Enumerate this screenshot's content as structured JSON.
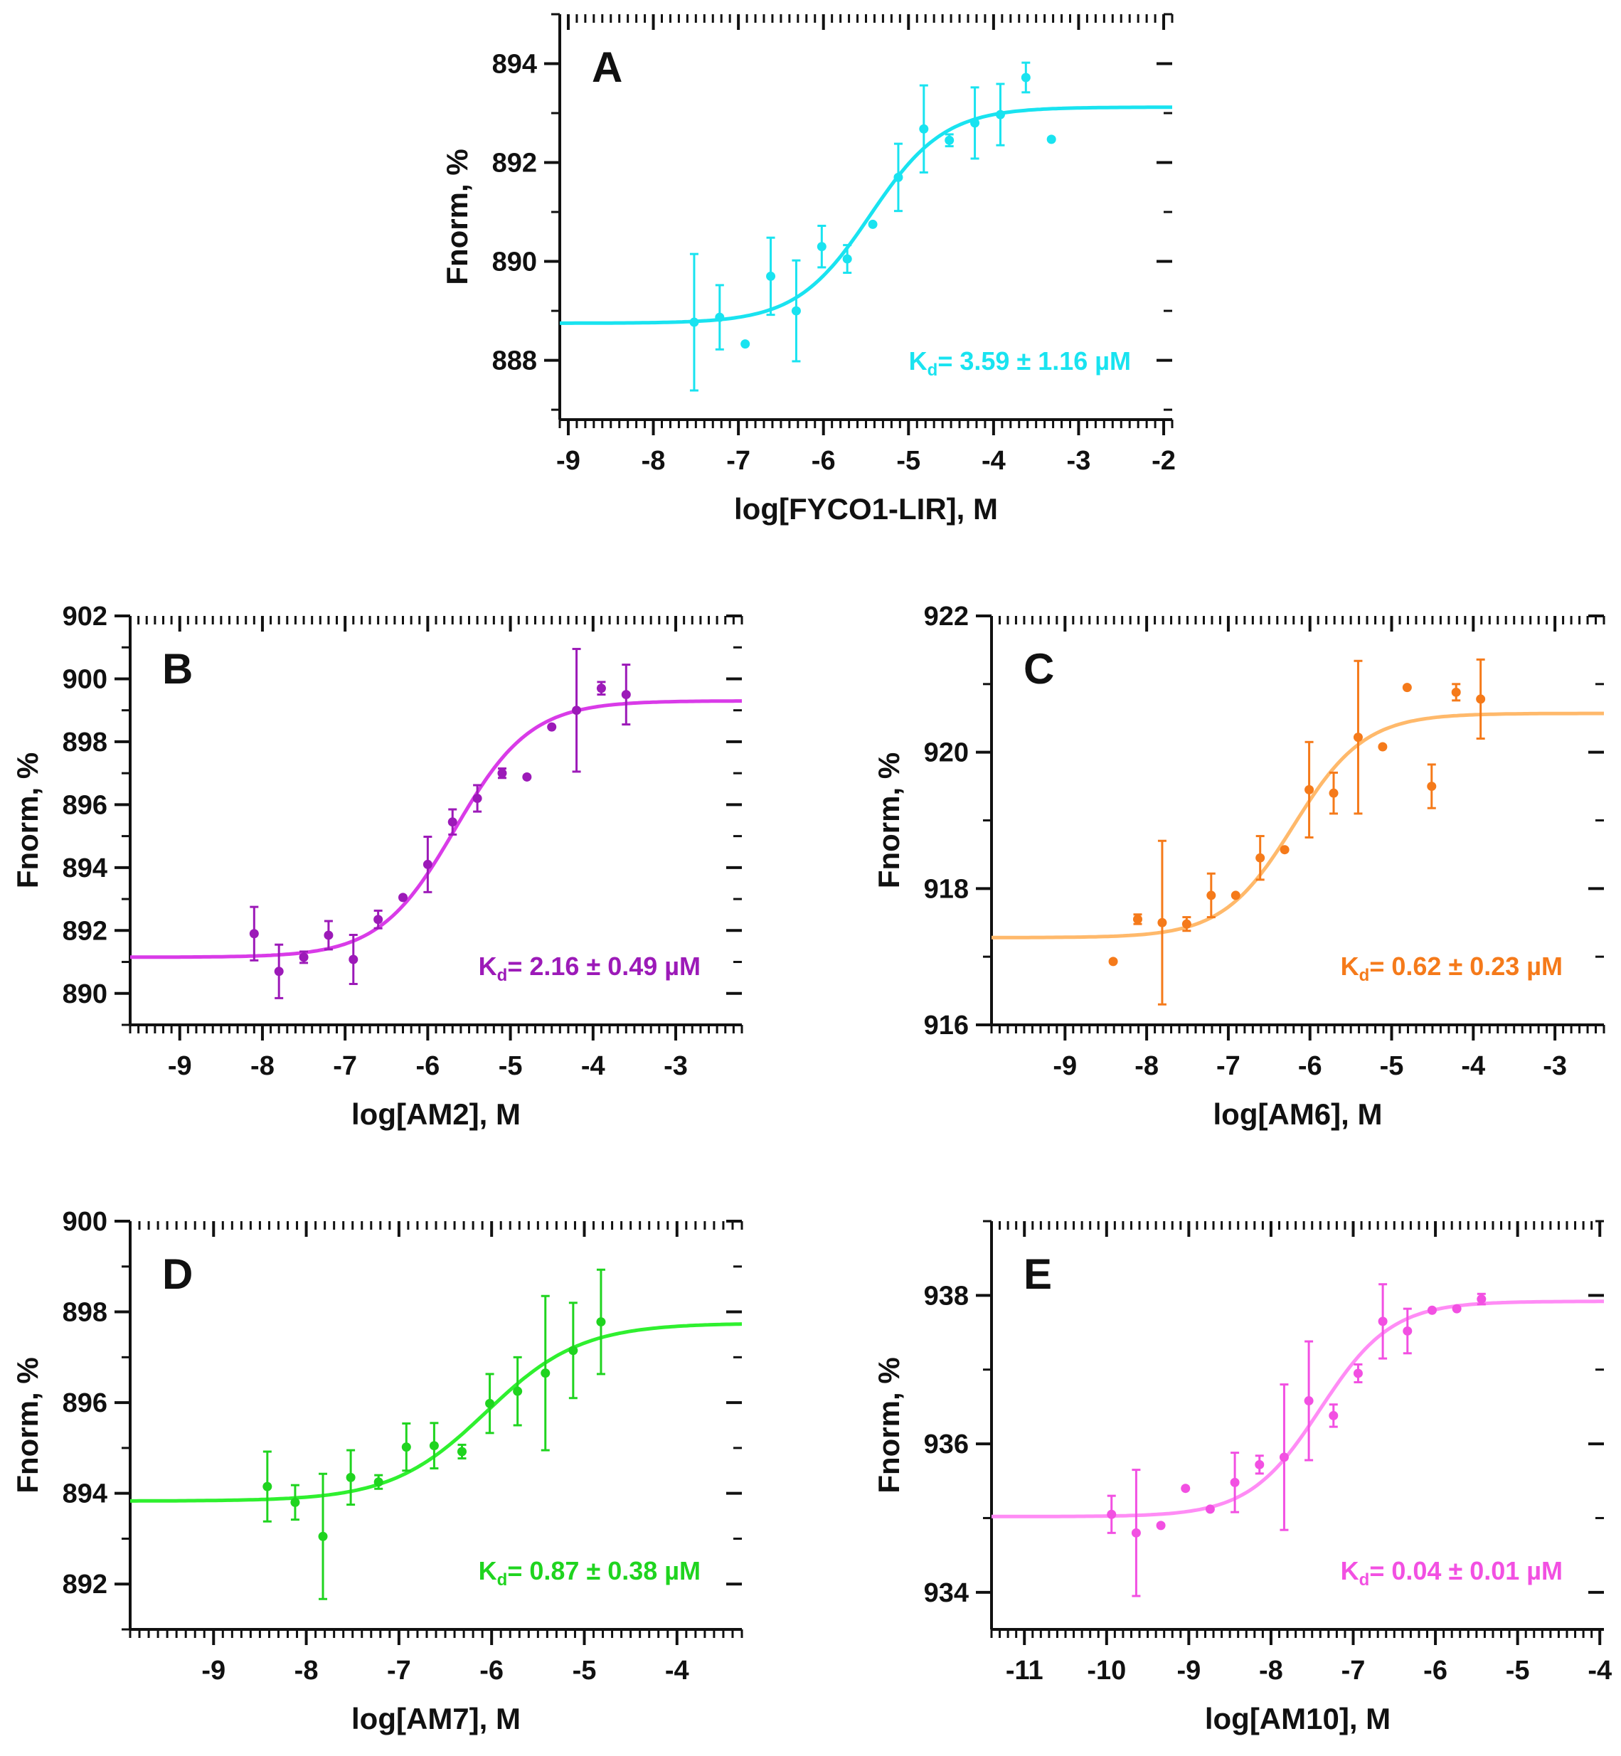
{
  "chart_data": [
    {
      "type": "scatter",
      "panel": "A",
      "xlabel": "log[FYCO1-LIR], M",
      "ylabel": "Fnorm, %",
      "xlim": [
        -9.1,
        -1.9
      ],
      "ylim": [
        886.8,
        895.0
      ],
      "xticks": [
        -9,
        -8,
        -7,
        -6,
        -5,
        -4,
        -3,
        -2
      ],
      "yticks": [
        888,
        890,
        892,
        894
      ],
      "color": "#19e3f0",
      "annotation": {
        "text": "K",
        "sub": "d",
        "rest": "= 3.59 ± 1.16 µM"
      },
      "fit": {
        "bottom": 888.75,
        "top": 893.12,
        "logEC50": -5.45,
        "hill": 1.0
      },
      "points": [
        {
          "x": -7.52,
          "y": 888.77,
          "err": 1.38
        },
        {
          "x": -7.22,
          "y": 888.87,
          "err": 0.65
        },
        {
          "x": -6.92,
          "y": 888.33,
          "err": 0.0
        },
        {
          "x": -6.62,
          "y": 889.7,
          "err": 0.78
        },
        {
          "x": -6.32,
          "y": 889.0,
          "err": 1.02
        },
        {
          "x": -6.02,
          "y": 890.3,
          "err": 0.42
        },
        {
          "x": -5.72,
          "y": 890.05,
          "err": 0.28
        },
        {
          "x": -5.42,
          "y": 890.75,
          "err": 0.0
        },
        {
          "x": -5.12,
          "y": 891.7,
          "err": 0.68
        },
        {
          "x": -4.82,
          "y": 892.68,
          "err": 0.88
        },
        {
          "x": -4.52,
          "y": 892.45,
          "err": 0.12
        },
        {
          "x": -4.22,
          "y": 892.8,
          "err": 0.72
        },
        {
          "x": -3.92,
          "y": 892.97,
          "err": 0.62
        },
        {
          "x": -3.62,
          "y": 893.72,
          "err": 0.3
        },
        {
          "x": -3.32,
          "y": 892.47,
          "err": 0.0
        }
      ]
    },
    {
      "type": "scatter",
      "panel": "B",
      "xlabel": "log[AM2], M",
      "ylabel": "Fnorm, %",
      "xlim": [
        -9.6,
        -2.2
      ],
      "ylim": [
        889.0,
        902.0
      ],
      "xticks": [
        -9,
        -8,
        -7,
        -6,
        -5,
        -4,
        -3
      ],
      "yticks": [
        890,
        892,
        894,
        896,
        898,
        900,
        902
      ],
      "color": "#9c1ab8",
      "fitColor": "#d93be8",
      "annotation": {
        "text": "K",
        "sub": "d",
        "rest": "= 2.16 ± 0.49 µM"
      },
      "fit": {
        "bottom": 891.15,
        "top": 899.3,
        "logEC50": -5.67,
        "hill": 0.95
      },
      "points": [
        {
          "x": -8.1,
          "y": 891.9,
          "err": 0.85
        },
        {
          "x": -7.8,
          "y": 890.7,
          "err": 0.85
        },
        {
          "x": -7.5,
          "y": 891.15,
          "err": 0.18
        },
        {
          "x": -7.2,
          "y": 891.85,
          "err": 0.45
        },
        {
          "x": -6.9,
          "y": 891.08,
          "err": 0.78
        },
        {
          "x": -6.6,
          "y": 892.35,
          "err": 0.28
        },
        {
          "x": -6.3,
          "y": 893.05,
          "err": 0.0
        },
        {
          "x": -6.0,
          "y": 894.1,
          "err": 0.88
        },
        {
          "x": -5.7,
          "y": 895.45,
          "err": 0.4
        },
        {
          "x": -5.4,
          "y": 896.2,
          "err": 0.42
        },
        {
          "x": -5.1,
          "y": 897.0,
          "err": 0.15
        },
        {
          "x": -4.8,
          "y": 896.88,
          "err": 0.0
        },
        {
          "x": -4.5,
          "y": 898.47,
          "err": 0.0
        },
        {
          "x": -4.2,
          "y": 899.0,
          "err": 1.95
        },
        {
          "x": -3.9,
          "y": 899.7,
          "err": 0.2
        },
        {
          "x": -3.6,
          "y": 899.5,
          "err": 0.95
        }
      ]
    },
    {
      "type": "scatter",
      "panel": "C",
      "xlabel": "log[AM6], M",
      "ylabel": "Fnorm, %",
      "xlim": [
        -9.9,
        -2.4
      ],
      "ylim": [
        916.0,
        922.0
      ],
      "xticks": [
        -9,
        -8,
        -7,
        -6,
        -5,
        -4,
        -3
      ],
      "yticks": [
        916,
        918,
        920,
        922
      ],
      "color": "#f57a1a",
      "fitColor": "#ffb96b",
      "annotation": {
        "text": "K",
        "sub": "d",
        "rest": "= 0.62 ± 0.23 µM"
      },
      "fit": {
        "bottom": 917.28,
        "top": 920.57,
        "logEC50": -6.2,
        "hill": 1.0
      },
      "points": [
        {
          "x": -8.41,
          "y": 916.93,
          "err": 0.0
        },
        {
          "x": -8.11,
          "y": 917.55,
          "err": 0.07
        },
        {
          "x": -7.81,
          "y": 917.5,
          "err": 1.2
        },
        {
          "x": -7.51,
          "y": 917.48,
          "err": 0.1
        },
        {
          "x": -7.21,
          "y": 917.9,
          "err": 0.32
        },
        {
          "x": -6.91,
          "y": 917.9,
          "err": 0.0
        },
        {
          "x": -6.61,
          "y": 918.45,
          "err": 0.32
        },
        {
          "x": -6.31,
          "y": 918.57,
          "err": 0.0
        },
        {
          "x": -6.01,
          "y": 919.45,
          "err": 0.7
        },
        {
          "x": -5.71,
          "y": 919.4,
          "err": 0.3
        },
        {
          "x": -5.41,
          "y": 920.22,
          "err": 1.12
        },
        {
          "x": -5.11,
          "y": 920.08,
          "err": 0.0
        },
        {
          "x": -4.81,
          "y": 920.95,
          "err": 0.0
        },
        {
          "x": -4.51,
          "y": 919.5,
          "err": 0.32
        },
        {
          "x": -4.21,
          "y": 920.88,
          "err": 0.12
        },
        {
          "x": -3.91,
          "y": 920.78,
          "err": 0.58
        }
      ]
    },
    {
      "type": "scatter",
      "panel": "D",
      "xlabel": "log[AM7], M",
      "ylabel": "Fnorm, %",
      "xlim": [
        -9.9,
        -3.3
      ],
      "ylim": [
        891.0,
        900.0
      ],
      "xticks": [
        -9,
        -8,
        -7,
        -6,
        -5,
        -4
      ],
      "yticks": [
        892,
        894,
        896,
        898,
        900
      ],
      "color": "#1fd41f",
      "fitColor": "#2ff02f",
      "annotation": {
        "text": "K",
        "sub": "d",
        "rest": "= 0.87 ± 0.38 µM"
      },
      "fit": {
        "bottom": 893.83,
        "top": 897.75,
        "logEC50": -6.06,
        "hill": 0.85
      },
      "points": [
        {
          "x": -8.42,
          "y": 894.15,
          "err": 0.77
        },
        {
          "x": -8.12,
          "y": 893.8,
          "err": 0.38
        },
        {
          "x": -7.82,
          "y": 893.05,
          "err": 1.38
        },
        {
          "x": -7.52,
          "y": 894.35,
          "err": 0.6
        },
        {
          "x": -7.22,
          "y": 894.25,
          "err": 0.15
        },
        {
          "x": -6.92,
          "y": 895.02,
          "err": 0.52
        },
        {
          "x": -6.62,
          "y": 895.05,
          "err": 0.5
        },
        {
          "x": -6.32,
          "y": 894.92,
          "err": 0.15
        },
        {
          "x": -6.02,
          "y": 895.98,
          "err": 0.65
        },
        {
          "x": -5.72,
          "y": 896.25,
          "err": 0.75
        },
        {
          "x": -5.42,
          "y": 896.65,
          "err": 1.7
        },
        {
          "x": -5.12,
          "y": 897.15,
          "err": 1.05
        },
        {
          "x": -4.82,
          "y": 897.78,
          "err": 1.15
        }
      ]
    },
    {
      "type": "scatter",
      "panel": "E",
      "xlabel": "log[AM10], M",
      "ylabel": "Fnorm, %",
      "xlim": [
        -11.4,
        -3.95
      ],
      "ylim": [
        933.5,
        939.0
      ],
      "xticks": [
        -11,
        -10,
        -9,
        -8,
        -7,
        -6,
        -5,
        -4
      ],
      "yticks": [
        934,
        936,
        938
      ],
      "color": "#f250e2",
      "fitColor": "#ff8cf5",
      "annotation": {
        "text": "K",
        "sub": "d",
        "rest": "= 0.04 ± 0.01 µM"
      },
      "fit": {
        "bottom": 935.02,
        "top": 937.92,
        "logEC50": -7.4,
        "hill": 1.0
      },
      "points": [
        {
          "x": -9.94,
          "y": 935.05,
          "err": 0.25
        },
        {
          "x": -9.64,
          "y": 934.8,
          "err": 0.85
        },
        {
          "x": -9.34,
          "y": 934.9,
          "err": 0.0
        },
        {
          "x": -9.04,
          "y": 935.4,
          "err": 0.0
        },
        {
          "x": -8.74,
          "y": 935.12,
          "err": 0.0
        },
        {
          "x": -8.44,
          "y": 935.48,
          "err": 0.4
        },
        {
          "x": -8.14,
          "y": 935.72,
          "err": 0.12
        },
        {
          "x": -7.84,
          "y": 935.82,
          "err": 0.98
        },
        {
          "x": -7.54,
          "y": 936.58,
          "err": 0.8
        },
        {
          "x": -7.24,
          "y": 936.38,
          "err": 0.15
        },
        {
          "x": -6.94,
          "y": 936.95,
          "err": 0.12
        },
        {
          "x": -6.64,
          "y": 937.65,
          "err": 0.5
        },
        {
          "x": -6.34,
          "y": 937.52,
          "err": 0.3
        },
        {
          "x": -6.04,
          "y": 937.8,
          "err": 0.0
        },
        {
          "x": -5.74,
          "y": 937.82,
          "err": 0.0
        },
        {
          "x": -5.44,
          "y": 937.95,
          "err": 0.07
        }
      ]
    }
  ]
}
